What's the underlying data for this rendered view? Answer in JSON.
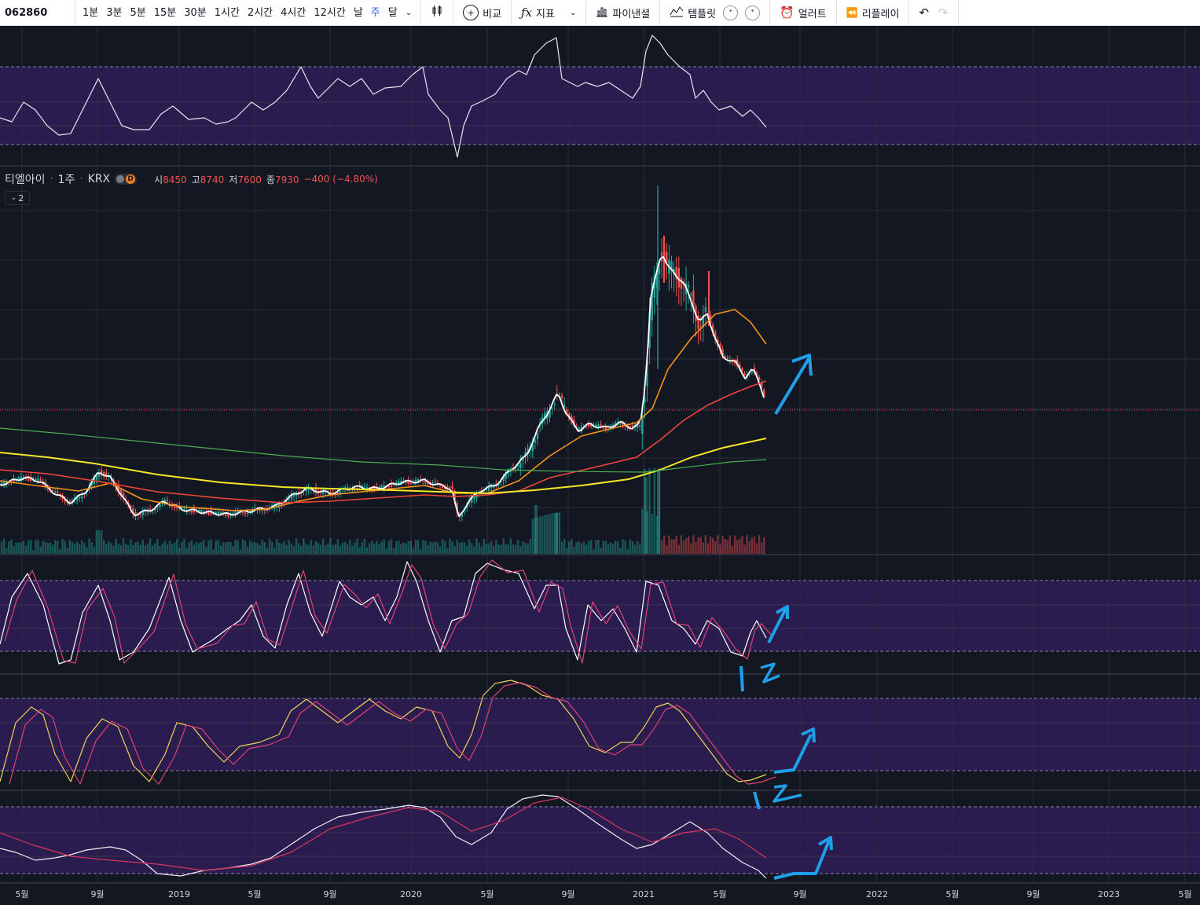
{
  "toolbar": {
    "symbol": "062860",
    "intervals": [
      "1분",
      "3분",
      "5분",
      "15분",
      "30분",
      "1시간",
      "2시간",
      "4시간",
      "12시간",
      "날",
      "주",
      "달"
    ],
    "active_interval": "주",
    "compare_label": "비교",
    "indicators_label": "지표",
    "financials_label": "파이낸셜",
    "templates_label": "템플릿",
    "alert_label": "얼러트",
    "replay_label": "리플레이"
  },
  "legend": {
    "name": "티엘아이",
    "interval": "1주",
    "exchange": "KRX",
    "badge": "D",
    "open_label": "시",
    "open": "8450",
    "high_label": "고",
    "high": "8740",
    "low_label": "저",
    "low": "7600",
    "close_label": "종",
    "close": "7930",
    "change": "−400 (−4.80%)",
    "collapse_count": "2"
  },
  "x_axis": {
    "labels": [
      "5월",
      "9월",
      "2019",
      "5월",
      "9월",
      "2020",
      "5월",
      "9월",
      "2021",
      "5월",
      "9월",
      "2022",
      "5월",
      "9월",
      "2023",
      "5월"
    ]
  },
  "colors": {
    "background": "#131722",
    "grid": "#2a2e39",
    "up": "#26a69a",
    "down": "#ef5350",
    "osc_band": "#2a1c4e",
    "ma_fast": "#ffffff",
    "ma_orange": "#f7931a",
    "ma_red": "#f0463a",
    "ma_yellow": "#f5e727",
    "ma_green": "#4caf50",
    "annotation": "#1e9fe8"
  },
  "chart_data": {
    "type": "candlestick",
    "symbol": "티엘아이",
    "interval": "1주",
    "x_range": [
      "2018-04",
      "2023-05"
    ],
    "last_bar": {
      "open": 8450,
      "high": 8740,
      "low": 7600,
      "close": 7930,
      "change": -400,
      "change_pct": -4.8
    },
    "price_series_key_points": [
      {
        "date": "2018-04",
        "close": 5200
      },
      {
        "date": "2018-09",
        "close": 5300
      },
      {
        "date": "2018-11",
        "close": 4500
      },
      {
        "date": "2019-05",
        "close": 4550
      },
      {
        "date": "2019-09",
        "close": 4800
      },
      {
        "date": "2020-01",
        "close": 4900
      },
      {
        "date": "2020-03",
        "close": 3900
      },
      {
        "date": "2020-05",
        "close": 5000
      },
      {
        "date": "2020-08",
        "close": 7600
      },
      {
        "date": "2020-12",
        "close": 7300
      },
      {
        "date": "2021-02",
        "close": 15500
      },
      {
        "date": "2021-04",
        "close": 12500
      },
      {
        "date": "2021-06",
        "close": 9000
      },
      {
        "date": "2021-07",
        "close": 7930
      }
    ],
    "moving_averages": [
      "white",
      "orange",
      "red",
      "yellow",
      "green"
    ],
    "oscillators": [
      {
        "name": "top oscillator",
        "lines": [
          "white"
        ]
      },
      {
        "name": "stochastic 1",
        "lines": [
          "white",
          "pink"
        ]
      },
      {
        "name": "stochastic 2",
        "lines": [
          "yellow",
          "pink"
        ]
      },
      {
        "name": "stochastic 3",
        "lines": [
          "white",
          "pink"
        ]
      }
    ],
    "annotations": [
      "up arrow on price",
      "up arrow + '12' on osc 1",
      "up arrow + '12' on osc 2",
      "up arrow on osc 3"
    ]
  }
}
